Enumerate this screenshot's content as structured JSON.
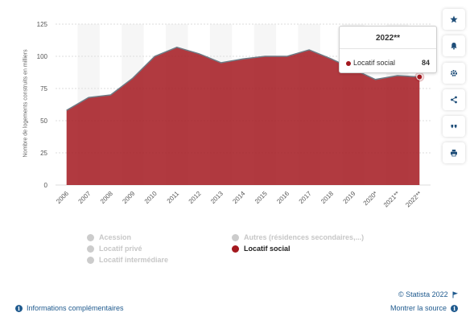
{
  "chart_data": {
    "type": "area",
    "ylabel": "Nombre de logements construits en milliers",
    "xlabel": "",
    "categories": [
      "2006",
      "2007",
      "2008",
      "2009",
      "2010",
      "2011",
      "2012",
      "2013",
      "2014",
      "2015",
      "2016",
      "2017",
      "2018",
      "2019",
      "2020*",
      "2021**",
      "2022**"
    ],
    "series": [
      {
        "name": "Locatif social",
        "values": [
          58,
          68,
          70,
          83,
          100,
          107,
          102,
          95,
          98,
          100,
          100,
          105,
          98,
          90,
          82,
          85,
          84
        ]
      }
    ],
    "ylim": [
      0,
      125
    ],
    "yticks": [
      0,
      25,
      50,
      75,
      100,
      125
    ],
    "grid": true,
    "legend_position": "bottom",
    "colors": {
      "series": "#a3181e",
      "line": "#6e7b85",
      "inactive": "#cccccc"
    }
  },
  "tooltip": {
    "title": "2022**",
    "label": "Locatif social",
    "value": "84"
  },
  "legend": [
    {
      "label": "Acession",
      "active": false
    },
    {
      "label": "Autres (résidences secondaires,...)",
      "active": false
    },
    {
      "label": "Locatif privé",
      "active": false
    },
    {
      "label": "Locatif social",
      "active": true
    },
    {
      "label": "Locatif intermédiare",
      "active": false
    }
  ],
  "sidebar": {
    "buttons": [
      {
        "icon": "star-icon"
      },
      {
        "icon": "bell-icon"
      },
      {
        "icon": "gear-icon"
      },
      {
        "icon": "share-icon"
      },
      {
        "icon": "quote-icon"
      },
      {
        "icon": "print-icon"
      }
    ]
  },
  "footer": {
    "info_link": "Informations complémentaires",
    "copyright": "© Statista 2022",
    "source_link": "Montrer la source"
  }
}
